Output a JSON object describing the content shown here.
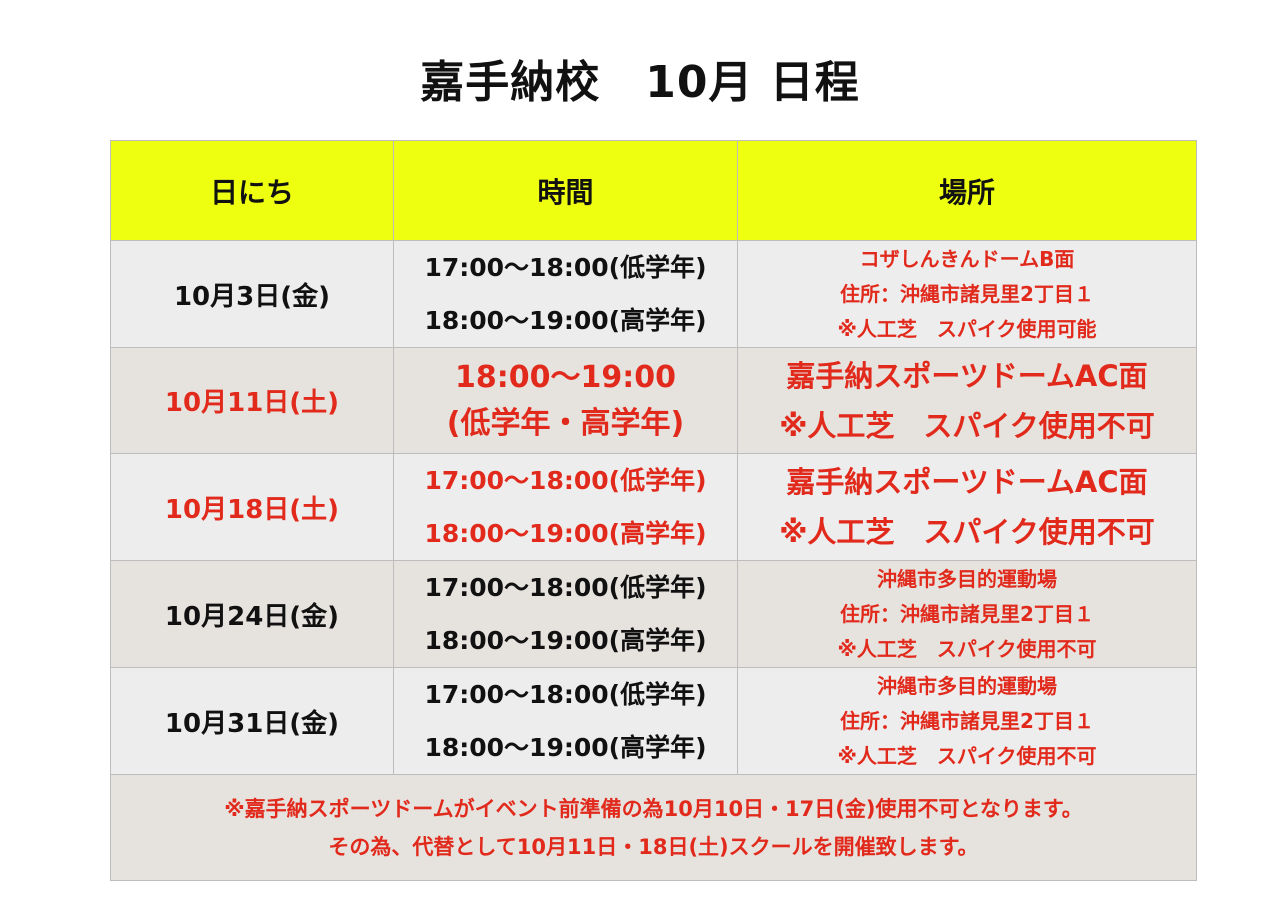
{
  "title": "嘉手納校　10月 日程",
  "headers": [
    "日にち",
    "時間",
    "場所"
  ],
  "rows": [
    {
      "date": "10月3日(金)",
      "date_red": false,
      "times": [
        "17:00〜18:00(低学年)",
        "18:00〜19:00(高学年)"
      ],
      "times_red": false,
      "times_big": false,
      "place": [
        "コザしんきんドームB面",
        "住所：沖縄市諸見里2丁目１",
        "※人工芝　スパイク使用可能"
      ],
      "place_big": false
    },
    {
      "date": "10月11日(土)",
      "date_red": true,
      "times": [
        "18:00〜19:00",
        "(低学年・高学年)"
      ],
      "times_red": true,
      "times_big": true,
      "place": [
        "嘉手納スポーツドームAC面",
        "※人工芝　スパイク使用不可"
      ],
      "place_big": true
    },
    {
      "date": "10月18日(土)",
      "date_red": true,
      "times": [
        "17:00〜18:00(低学年)",
        "18:00〜19:00(高学年)"
      ],
      "times_red": true,
      "times_big": false,
      "place": [
        "嘉手納スポーツドームAC面",
        "※人工芝　スパイク使用不可"
      ],
      "place_big": true
    },
    {
      "date": "10月24日(金)",
      "date_red": false,
      "times": [
        "17:00〜18:00(低学年)",
        "18:00〜19:00(高学年)"
      ],
      "times_red": false,
      "times_big": false,
      "place": [
        "沖縄市多目的運動場",
        "住所：沖縄市諸見里2丁目１",
        "※人工芝　スパイク使用不可"
      ],
      "place_big": false
    },
    {
      "date": "10月31日(金)",
      "date_red": false,
      "times": [
        "17:00〜18:00(低学年)",
        "18:00〜19:00(高学年)"
      ],
      "times_red": false,
      "times_big": false,
      "place": [
        "沖縄市多目的運動場",
        "住所：沖縄市諸見里2丁目１",
        "※人工芝　スパイク使用不可"
      ],
      "place_big": false
    }
  ],
  "footer": [
    "※嘉手納スポーツドームがイベント前準備の為10月10日・17日(金)使用不可となります。",
    "その為、代替として10月11日・18日(土)スクールを開催致します。"
  ],
  "colors": {
    "header_bg": "#eeff10",
    "accent_red": "#e12a1c"
  }
}
